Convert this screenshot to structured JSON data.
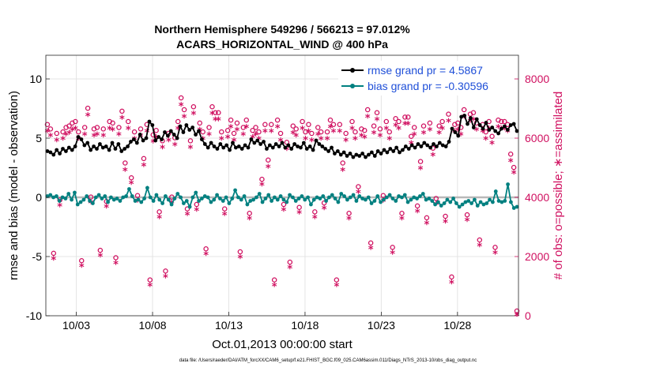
{
  "chart_data": {
    "type": "line",
    "title_line1": "Northern Hemisphere 549296 / 566213 = 97.012%",
    "title_line2": "ACARS_HORIZONTAL_WIND @ 400 hPa",
    "xlabel": "Oct.01,2013 00:00:00 start",
    "ylabel_left": "rmse and bias (model - observation)",
    "ylabel_right": "# of obs: o=possible; ∗=assimilated",
    "footnote": "data file: /Users/raeder/DAI/ATM_forcXX/CAM6_setup/f.e21.FHIST_BGC.f09_025.CAM6assim.011/Diags_NTrS_2013-10/obs_diag_output.nc",
    "xlim": [
      1.0,
      32.0
    ],
    "ylim_left": [
      -10,
      12
    ],
    "ylim_right": [
      0,
      8800
    ],
    "x_ticks": [
      3,
      8,
      13,
      18,
      23,
      28
    ],
    "x_tick_labels": [
      "10/03",
      "10/08",
      "10/13",
      "10/18",
      "10/23",
      "10/28"
    ],
    "y_left_ticks": [
      -10,
      -5,
      0,
      5,
      10
    ],
    "y_left_tick_labels": [
      "-10",
      "-5",
      "0",
      "5",
      "10"
    ],
    "y_right_ticks": [
      0,
      2000,
      4000,
      6000,
      8000
    ],
    "y_right_tick_labels": [
      "0",
      "2000",
      "4000",
      "6000",
      "8000"
    ],
    "grid": true,
    "legend": "top-right",
    "series": [
      {
        "name": "rmse grand pr = 4.5867",
        "axis": "left",
        "color": "#000000",
        "marker": "dot",
        "values": [
          3.9,
          3.8,
          3.6,
          4.0,
          3.7,
          4.1,
          3.9,
          4.2,
          4.0,
          4.3,
          5.1,
          4.9,
          4.4,
          4.6,
          4.0,
          4.3,
          4.1,
          4.5,
          4.2,
          4.3,
          4.0,
          4.6,
          4.1,
          4.5,
          3.9,
          4.1,
          4.3,
          4.7,
          4.9,
          4.6,
          5.3,
          4.8,
          5.0,
          6.4,
          6.1,
          4.8,
          5.1,
          4.9,
          5.5,
          5.2,
          5.6,
          5.3,
          5.0,
          6.0,
          5.5,
          6.1,
          5.7,
          5.9,
          5.3,
          5.6,
          4.9,
          4.5,
          4.2,
          4.6,
          4.3,
          4.1,
          4.5,
          4.2,
          4.4,
          4.0,
          4.6,
          4.2,
          4.3,
          4.1,
          4.4,
          4.2,
          4.9,
          4.6,
          4.8,
          4.5,
          4.7,
          4.1,
          4.4,
          4.2,
          4.5,
          4.3,
          4.6,
          4.2,
          4.4,
          4.1,
          4.5,
          4.3,
          4.2,
          4.6,
          4.1,
          4.3,
          4.0,
          4.8,
          4.5,
          4.3,
          4.1,
          3.9,
          4.2,
          3.7,
          3.9,
          3.6,
          3.8,
          3.5,
          3.7,
          3.4,
          3.6,
          3.5,
          3.7,
          3.4,
          3.6,
          3.8,
          3.5,
          3.9,
          3.7,
          4.0,
          3.8,
          4.1,
          3.9,
          4.2,
          3.8,
          4.0,
          4.3,
          4.1,
          4.4,
          4.2,
          4.5,
          4.3,
          4.6,
          4.4,
          4.2,
          4.5,
          4.3,
          4.6,
          4.4,
          4.3,
          4.7,
          5.8,
          5.5,
          5.2,
          6.8,
          6.9,
          6.2,
          6.7,
          5.9,
          6.6,
          6.1,
          5.8,
          6.3,
          5.7,
          5.9,
          5.6,
          5.4,
          5.8,
          6.0,
          5.7,
          6.1,
          6.2,
          5.6
        ]
      },
      {
        "name": "bias grand pr = -0.30596",
        "axis": "left",
        "color": "#008080",
        "marker": "dot",
        "values": [
          0.1,
          0.2,
          0.0,
          0.1,
          -0.3,
          0.0,
          -0.1,
          0.3,
          -0.2,
          0.4,
          -0.6,
          -0.4,
          -0.2,
          0.1,
          -0.3,
          -0.5,
          0.0,
          0.2,
          -0.1,
          0.1,
          -0.4,
          0.0,
          -0.2,
          -0.1,
          -0.3,
          0.0,
          0.1,
          0.7,
          0.1,
          -0.3,
          -0.2,
          -0.4,
          -0.1,
          0.8,
          0.0,
          -0.3,
          0.2,
          -0.2,
          -0.5,
          0.1,
          -0.2,
          -0.6,
          -0.1,
          0.3,
          0.0,
          -0.5,
          -0.3,
          -0.8,
          0.0,
          0.4,
          -0.3,
          -0.1,
          0.1,
          0.0,
          -0.4,
          -0.2,
          0.2,
          -0.1,
          -0.3,
          0.0,
          -0.5,
          -0.1,
          0.6,
          0.0,
          -0.2,
          0.1,
          -0.6,
          -0.3,
          -0.2,
          0.0,
          0.3,
          -0.4,
          -0.1,
          0.2,
          -0.3,
          0.0,
          -0.2,
          0.1,
          -0.2,
          -0.4,
          0.2,
          0.0,
          -0.3,
          -0.1,
          0.1,
          -0.2,
          0.0,
          -0.6,
          -0.2,
          0.0,
          -0.1,
          0.1,
          -0.3,
          0.0,
          0.2,
          -0.1,
          -0.4,
          0.3,
          0.1,
          -0.2,
          0.0,
          0.2,
          -0.3,
          0.1,
          -0.1,
          -0.2,
          0.0,
          -0.5,
          -0.3,
          0.1,
          -0.4,
          -0.2,
          0.0,
          0.2,
          -0.1,
          -0.3,
          0.1,
          0.0,
          0.2,
          -0.4,
          -0.2,
          0.0,
          -0.1,
          0.1,
          0.3,
          -0.2,
          -0.1,
          -0.3,
          -0.6,
          -0.4,
          -0.7,
          -0.5,
          -0.2,
          -0.4,
          -0.1,
          -0.5,
          -0.8,
          -0.6,
          -0.4,
          -0.3,
          -0.5,
          -0.2,
          -0.7,
          -0.4,
          -0.6,
          -0.5,
          -0.2,
          -0.4,
          0.5,
          -0.3,
          -0.4,
          -0.3,
          1.1,
          -0.4,
          -0.9,
          -0.8
        ]
      },
      {
        "name": "obs possible",
        "axis": "right",
        "color": "#d01060",
        "marker": "circle",
        "values": [
          6300,
          6150,
          1950,
          6000,
          3750,
          6050,
          6200,
          6250,
          6350,
          6400,
          6050,
          1700,
          6200,
          6850,
          3850,
          6150,
          6200,
          2050,
          6150,
          3700,
          6400,
          6350,
          1800,
          6200,
          6750,
          5000,
          6400,
          4500,
          6050,
          3900,
          6150,
          5150,
          6300,
          1050,
          5950,
          6100,
          3350,
          5750,
          1350,
          6000,
          3850,
          5850,
          6400,
          7200,
          6800,
          3450,
          5750,
          6900,
          3600,
          6350,
          6050,
          2100,
          6200,
          6900,
          6700,
          6700,
          6050,
          3450,
          6100,
          6450,
          6000,
          6350,
          2000,
          6200,
          6450,
          3300,
          6100,
          6200,
          6050,
          4450,
          6300,
          5100,
          6300,
          1050,
          6450,
          6000,
          3600,
          5700,
          1650,
          6250,
          6150,
          3500,
          6400,
          6050,
          6300,
          6000,
          3350,
          6200,
          6050,
          3650,
          6050,
          6450,
          6300,
          1050,
          6300,
          5000,
          6000,
          3300,
          6400,
          6050,
          4200,
          6150,
          6100,
          6800,
          2300,
          6250,
          6700,
          6150,
          3900,
          6400,
          6050,
          2150,
          6500,
          6400,
          3300,
          6550,
          6550,
          5900,
          6200,
          3550,
          5050,
          6250,
          3150,
          6350,
          5500,
          3800,
          6250,
          6400,
          3200,
          6650,
          1150,
          6300,
          6350,
          6200,
          6800,
          3250,
          6650,
          6700,
          6350,
          2400,
          6300,
          6050,
          6400,
          5900,
          2150,
          6450,
          6400,
          6400,
          6300,
          5300,
          4850,
          0
        ]
      },
      {
        "name": "obs assimilated",
        "axis": "right",
        "color": "#d01060",
        "marker": "star",
        "values": [
          6200,
          6050,
          1900,
          5900,
          3700,
          5950,
          6100,
          6150,
          6250,
          6300,
          5950,
          1650,
          6100,
          6750,
          3800,
          6050,
          6100,
          2000,
          6050,
          3650,
          6300,
          6250,
          1750,
          6100,
          6650,
          4900,
          6300,
          4450,
          5950,
          3850,
          6050,
          5050,
          6200,
          1000,
          5850,
          6000,
          3300,
          5650,
          1300,
          5900,
          3800,
          5750,
          6300,
          7100,
          6700,
          3400,
          5650,
          6800,
          3550,
          6250,
          5950,
          2050,
          6100,
          6800,
          6600,
          6600,
          5950,
          3400,
          6000,
          6350,
          5900,
          6250,
          1950,
          6100,
          6350,
          3250,
          6000,
          6100,
          5950,
          4400,
          6200,
          5000,
          6200,
          1000,
          6350,
          5900,
          3550,
          5600,
          1600,
          6150,
          6050,
          3450,
          6300,
          5950,
          6200,
          5900,
          3300,
          6100,
          5950,
          3600,
          5950,
          6350,
          6200,
          1000,
          6200,
          4900,
          5900,
          3250,
          6300,
          5950,
          4150,
          6050,
          6000,
          6700,
          2250,
          6150,
          6600,
          6050,
          3850,
          6300,
          5950,
          2100,
          6400,
          6300,
          3250,
          6450,
          6450,
          5800,
          6100,
          3500,
          4950,
          6150,
          3100,
          6250,
          5400,
          3750,
          6150,
          6300,
          3150,
          6550,
          1100,
          6200,
          6250,
          6100,
          6700,
          3200,
          6550,
          6600,
          6250,
          2350,
          6200,
          5950,
          6300,
          5800,
          2100,
          6350,
          6300,
          6300,
          6200,
          5200,
          4800,
          0
        ]
      }
    ]
  }
}
